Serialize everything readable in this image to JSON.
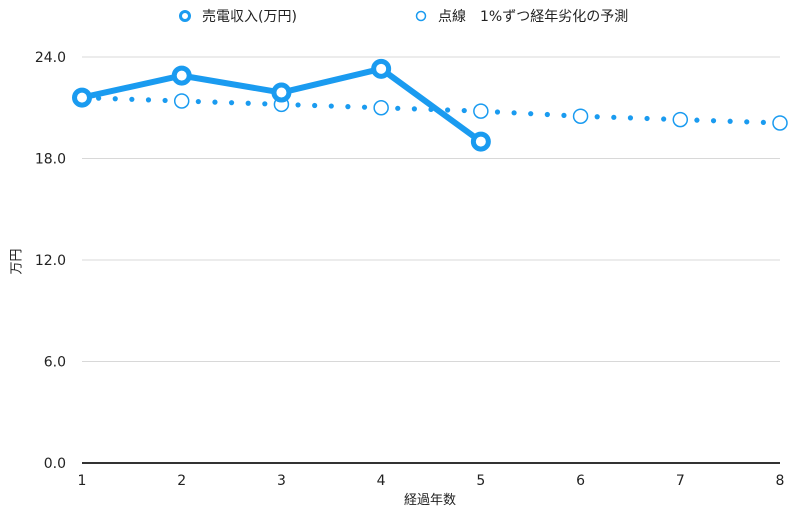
{
  "chart_data": {
    "type": "line",
    "title": "",
    "xlabel": "経過年数",
    "ylabel": "万円",
    "x": [
      1,
      2,
      3,
      4,
      5,
      6,
      7,
      8
    ],
    "ylim": [
      0,
      24
    ],
    "yticks": [
      "0.0",
      "6.0",
      "12.0",
      "18.0",
      "24.0"
    ],
    "xticks": [
      "1",
      "2",
      "3",
      "4",
      "5",
      "6",
      "7",
      "8"
    ],
    "grid": true,
    "legend_position": "top",
    "series": [
      {
        "name": "売電収入(万円)",
        "style": "solid",
        "color": "#1a9bf0",
        "values": [
          21.6,
          22.9,
          21.9,
          23.3,
          19.0,
          null,
          null,
          null
        ]
      },
      {
        "name": "点線　1%ずつ経年劣化の予測",
        "style": "dotted",
        "color": "#1a9bf0",
        "values": [
          21.6,
          21.4,
          21.2,
          21.0,
          20.8,
          20.5,
          20.3,
          20.1
        ]
      }
    ]
  },
  "legend": {
    "series1": "売電収入(万円)",
    "series2": "点線　1%ずつ経年劣化の予測"
  },
  "axes": {
    "xlabel": "経過年数",
    "ylabel": "万円"
  },
  "colors": {
    "accent": "#1a9bf0",
    "grid": "#d8d8d8",
    "axis": "#333333"
  }
}
